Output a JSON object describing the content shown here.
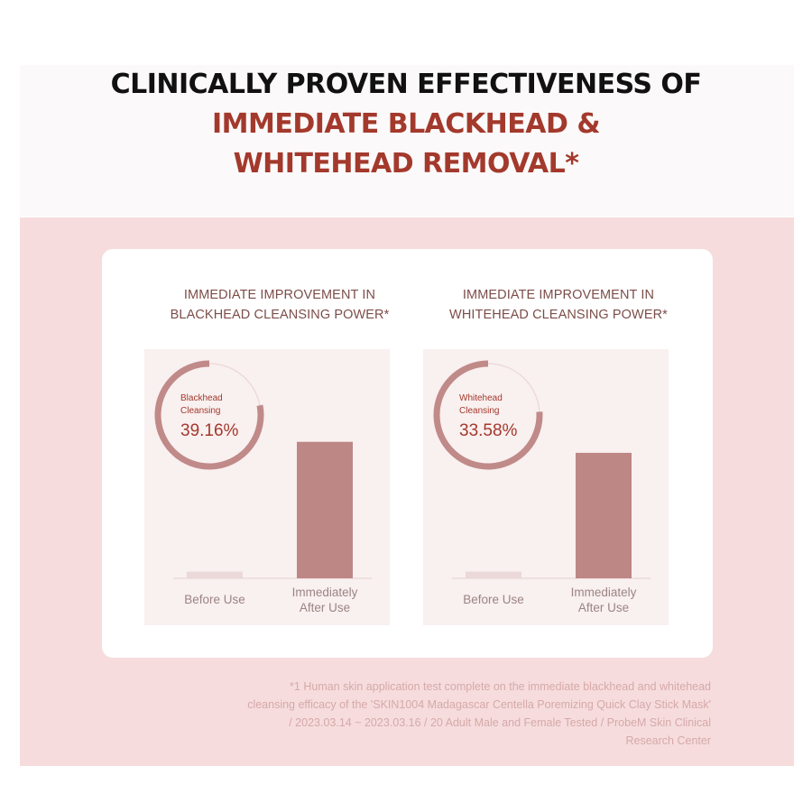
{
  "header": {
    "line1": "CLINICALLY PROVEN EFFECTIVENESS OF",
    "line2": "IMMEDIATE BLACKHEAD &",
    "line3": "WHITEHEAD REMOVAL*"
  },
  "colors": {
    "accent": "#a3392c",
    "bar": "#bd8786",
    "bar_before": "#ead9d8",
    "ring_track": "#ead7d6",
    "ring_fill": "#c08a89",
    "panel": "#f6dcdd"
  },
  "chart_data": [
    {
      "type": "bar",
      "title": [
        "IMMEDIATE IMPROVEMENT IN",
        "BLACKHEAD CLEANSING POWER*"
      ],
      "categories": [
        [
          "Before Use"
        ],
        [
          "Immediately",
          "After Use"
        ]
      ],
      "values": [
        3,
        62
      ],
      "ylim": [
        0,
        100
      ],
      "grid": false,
      "annotation": {
        "label": [
          "Blackhead",
          "Cleansing"
        ],
        "value_text": "39.16%",
        "ring_fraction": 0.78
      }
    },
    {
      "type": "bar",
      "title": [
        "IMMEDIATE IMPROVEMENT IN",
        "WHITEHEAD CLEANSING POWER*"
      ],
      "categories": [
        [
          "Before Use"
        ],
        [
          "Immediately",
          "After Use"
        ]
      ],
      "values": [
        3,
        57
      ],
      "ylim": [
        0,
        100
      ],
      "grid": false,
      "annotation": {
        "label": [
          "Whitehead",
          "Cleansing"
        ],
        "value_text": "33.58%",
        "ring_fraction": 0.76
      }
    }
  ],
  "footnote": [
    "*1 Human skin application test complete on the immediate blackhead and whitehead",
    "cleansing efficacy of the 'SKIN1004 Madagascar Centella Poremizing Quick Clay Stick Mask'",
    "/ 2023.03.14 ~ 2023.03.16 / 20 Adult Male and Female Tested / ProbeM Skin Clinical",
    "Research Center"
  ]
}
